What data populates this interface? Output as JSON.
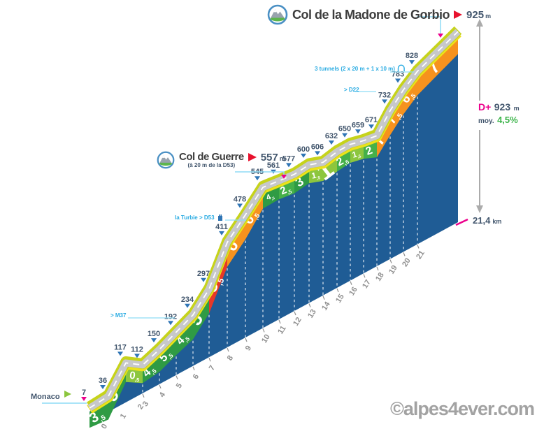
{
  "summit": {
    "name": "Col de la Madone de Gorbio",
    "elevation": "925",
    "unit": "m"
  },
  "col_de_guerre": {
    "name": "Col de Guerre",
    "note": "(à 20 m de la D53)",
    "elevation": "557",
    "unit": "m"
  },
  "start": {
    "name": "Monaco",
    "elevation": "7"
  },
  "stats": {
    "dplus_label": "D+",
    "dplus_value": "923",
    "dplus_unit": "m",
    "avg_label": "moy.",
    "avg_value": "4,5%",
    "distance_value": "21,4",
    "distance_unit": "km"
  },
  "annotations": {
    "m37": "> M37",
    "turbie": "la Turbie > D53",
    "d22": "> D22",
    "tunnels": "3 tunnels (2 x 20 m + 1 x 10 m)"
  },
  "watermark": "©alpes4ever.com",
  "chart_data": {
    "type": "area",
    "title": "Col de la Madone de Gorbio",
    "x_km": [
      0,
      1,
      2,
      3,
      4,
      5,
      6,
      7,
      8,
      9,
      10,
      11,
      12,
      13,
      14,
      15,
      16,
      17,
      18,
      19,
      20,
      21,
      21.4
    ],
    "elevations_m": [
      7,
      36,
      117,
      112,
      150,
      192,
      234,
      297,
      411,
      478,
      545,
      561,
      577,
      600,
      606,
      632,
      650,
      659,
      671,
      732,
      783,
      828,
      925
    ],
    "km_point_elevation_labels": [
      "7",
      "36",
      "117",
      "112",
      "150",
      "192",
      "234",
      "297",
      "411",
      "478",
      "545",
      "561",
      "577",
      "600",
      "606",
      "632",
      "650",
      "659",
      "671",
      "732",
      "783",
      "828"
    ],
    "summit_elevation_m": 925,
    "segment_gradients_pct": [
      3.5,
      5,
      0.5,
      4.5,
      5.5,
      4.5,
      5,
      8.5,
      6,
      6.5,
      4.5,
      2.5,
      3,
      1.5,
      1,
      2.5,
      1.5,
      2,
      7,
      7.5,
      6.5,
      7
    ],
    "segment_labels": [
      "3,5",
      "5",
      "0,5",
      "4,5",
      "5,5",
      "4,5",
      "5",
      "8,5",
      "6",
      "6,5",
      "4,5",
      "2,5",
      "3",
      "1,5",
      "1",
      "2,5",
      "1,5",
      "2",
      "7",
      "7,5",
      "6,5",
      "7"
    ],
    "km_tick_labels": [
      "0",
      "1",
      "2",
      "3",
      "4",
      "5",
      "6",
      "7",
      "8",
      "9",
      "10",
      "11",
      "12",
      "13",
      "14",
      "15",
      "16",
      "17",
      "18",
      "19",
      "20",
      "21"
    ],
    "total_distance_km": 21.4,
    "gain_m": 923,
    "avg_pct": 4.5,
    "legend_position": "none",
    "grid": "vertical-dashed-per-km",
    "colors": {
      "blue_fill": "#1f5c95",
      "road": "#c7c8ca",
      "road_dash": "#ffffff",
      "edge_top": "#c6d31b",
      "edge_bottom": "#ece21b",
      "grad_light": "#8cc63e",
      "grad_mid": "#45b049",
      "grad_dark": "#2f9b44",
      "grad_orange": "#f6921e",
      "grad_red": "#e73828",
      "label_slate": "#42566d",
      "marker_blue": "#2f75b5",
      "magenta": "#ec008c",
      "cyan_line": "#8edcf5",
      "km_gray": "#909090",
      "arrow_gray": "#ababab"
    }
  }
}
